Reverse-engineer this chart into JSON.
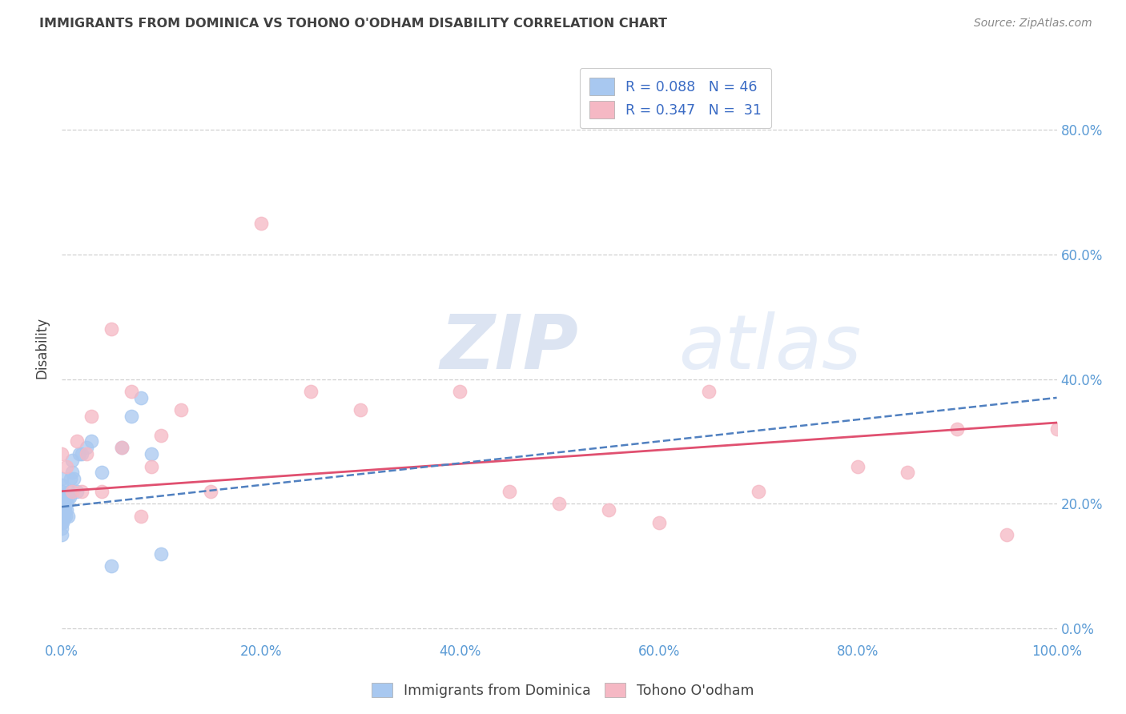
{
  "title": "IMMIGRANTS FROM DOMINICA VS TOHONO O'ODHAM DISABILITY CORRELATION CHART",
  "source": "Source: ZipAtlas.com",
  "ylabel": "Disability",
  "xlim": [
    0.0,
    1.0
  ],
  "ylim": [
    -0.02,
    0.92
  ],
  "xticks": [
    0.0,
    0.2,
    0.4,
    0.6,
    0.8,
    1.0
  ],
  "xtick_labels": [
    "0.0%",
    "20.0%",
    "40.0%",
    "60.0%",
    "80.0%",
    "100.0%"
  ],
  "yticks": [
    0.0,
    0.2,
    0.4,
    0.6,
    0.8
  ],
  "ytick_labels": [
    "0.0%",
    "20.0%",
    "40.0%",
    "60.0%",
    "80.0%"
  ],
  "blue_color": "#A8C8F0",
  "pink_color": "#F5B8C4",
  "blue_line_color": "#5080C0",
  "pink_line_color": "#E05070",
  "legend_text_color": "#3A6BC4",
  "axis_label_color": "#5b9bd5",
  "title_color": "#404040",
  "ylabel_color": "#404040",
  "grid_color": "#d0d0d0",
  "background_color": "#ffffff",
  "watermark_color": "#dce8f5",
  "blue_scatter_x": [
    0.0,
    0.0,
    0.0,
    0.0,
    0.0,
    0.0,
    0.0,
    0.0,
    0.0,
    0.0,
    0.001,
    0.001,
    0.001,
    0.001,
    0.001,
    0.002,
    0.002,
    0.002,
    0.002,
    0.003,
    0.003,
    0.003,
    0.004,
    0.004,
    0.005,
    0.005,
    0.006,
    0.006,
    0.007,
    0.008,
    0.009,
    0.01,
    0.01,
    0.012,
    0.015,
    0.018,
    0.02,
    0.025,
    0.03,
    0.04,
    0.05,
    0.06,
    0.07,
    0.08,
    0.09,
    0.1
  ],
  "blue_scatter_y": [
    0.19,
    0.2,
    0.21,
    0.22,
    0.18,
    0.17,
    0.16,
    0.15,
    0.23,
    0.24,
    0.19,
    0.2,
    0.21,
    0.18,
    0.17,
    0.19,
    0.2,
    0.21,
    0.18,
    0.2,
    0.21,
    0.19,
    0.21,
    0.18,
    0.19,
    0.2,
    0.18,
    0.21,
    0.22,
    0.21,
    0.24,
    0.25,
    0.27,
    0.24,
    0.22,
    0.28,
    0.28,
    0.29,
    0.3,
    0.25,
    0.1,
    0.29,
    0.34,
    0.37,
    0.28,
    0.12
  ],
  "pink_scatter_x": [
    0.0,
    0.005,
    0.01,
    0.015,
    0.02,
    0.025,
    0.03,
    0.04,
    0.05,
    0.06,
    0.07,
    0.08,
    0.09,
    0.1,
    0.12,
    0.15,
    0.2,
    0.25,
    0.3,
    0.4,
    0.45,
    0.5,
    0.6,
    0.65,
    0.7,
    0.8,
    0.85,
    0.9,
    0.95,
    1.0,
    0.55
  ],
  "pink_scatter_y": [
    0.28,
    0.26,
    0.22,
    0.3,
    0.22,
    0.28,
    0.34,
    0.22,
    0.48,
    0.29,
    0.38,
    0.18,
    0.26,
    0.31,
    0.35,
    0.22,
    0.65,
    0.38,
    0.35,
    0.38,
    0.22,
    0.2,
    0.17,
    0.38,
    0.22,
    0.26,
    0.25,
    0.32,
    0.15,
    0.32,
    0.19
  ],
  "pink_trend_x0": 0.0,
  "pink_trend_y0": 0.22,
  "pink_trend_x1": 1.0,
  "pink_trend_y1": 0.33,
  "blue_trend_x0": 0.0,
  "blue_trend_y0": 0.195,
  "blue_trend_x1": 1.0,
  "blue_trend_y1": 0.37,
  "figsize": [
    14.06,
    8.92
  ],
  "dpi": 100
}
